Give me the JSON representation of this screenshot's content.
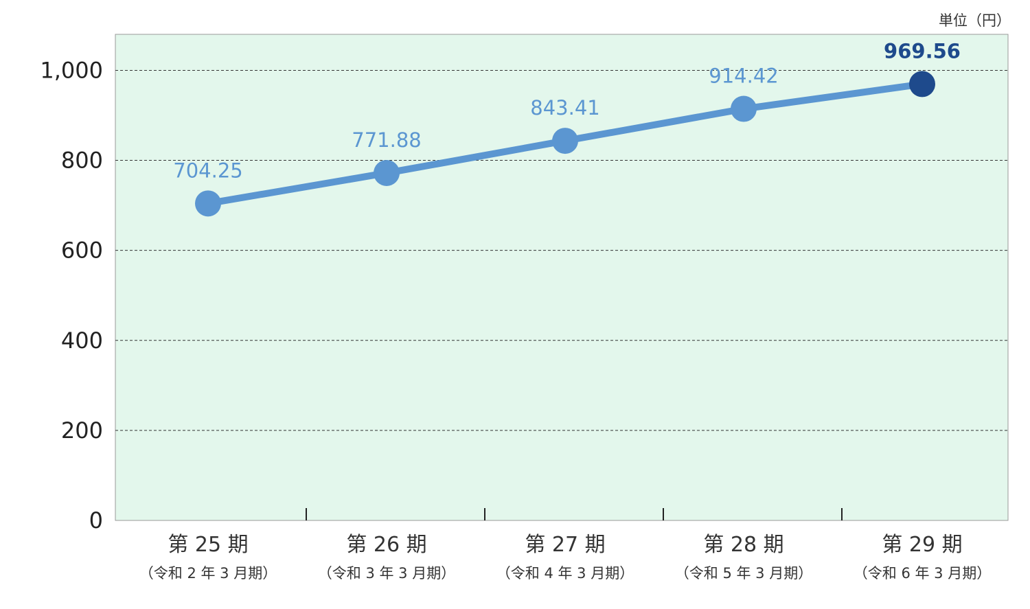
{
  "chart_data": {
    "type": "line",
    "unit_label": "単位（円）",
    "categories": [
      "第 25 期",
      "第 26 期",
      "第 27 期",
      "第 28 期",
      "第 29 期"
    ],
    "category_sublabels": [
      "（令和 2 年 3 月期）",
      "（令和 3 年 3 月期）",
      "（令和 4 年 3 月期）",
      "（令和 5 年 3 月期）",
      "（令和 6 年 3 月期）"
    ],
    "values": [
      704.25,
      771.88,
      843.41,
      914.42,
      969.56
    ],
    "value_labels": [
      "704.25",
      "771.88",
      "843.41",
      "914.42",
      "969.56"
    ],
    "yticks": [
      0,
      200,
      400,
      600,
      800,
      1000
    ],
    "ytick_labels": [
      "0",
      "200",
      "400",
      "600",
      "800",
      "1,000"
    ],
    "ylim": [
      0,
      1080
    ],
    "grid": true,
    "colors": {
      "plot_background": "#e3f7ec",
      "line": "#5b96d1",
      "marker": "#5b96d1",
      "highlight_marker": "#1e4a8c",
      "label": "#5b96d1",
      "highlight_label": "#1e4a8c",
      "grid": "#333333",
      "axis": "#999999"
    }
  }
}
